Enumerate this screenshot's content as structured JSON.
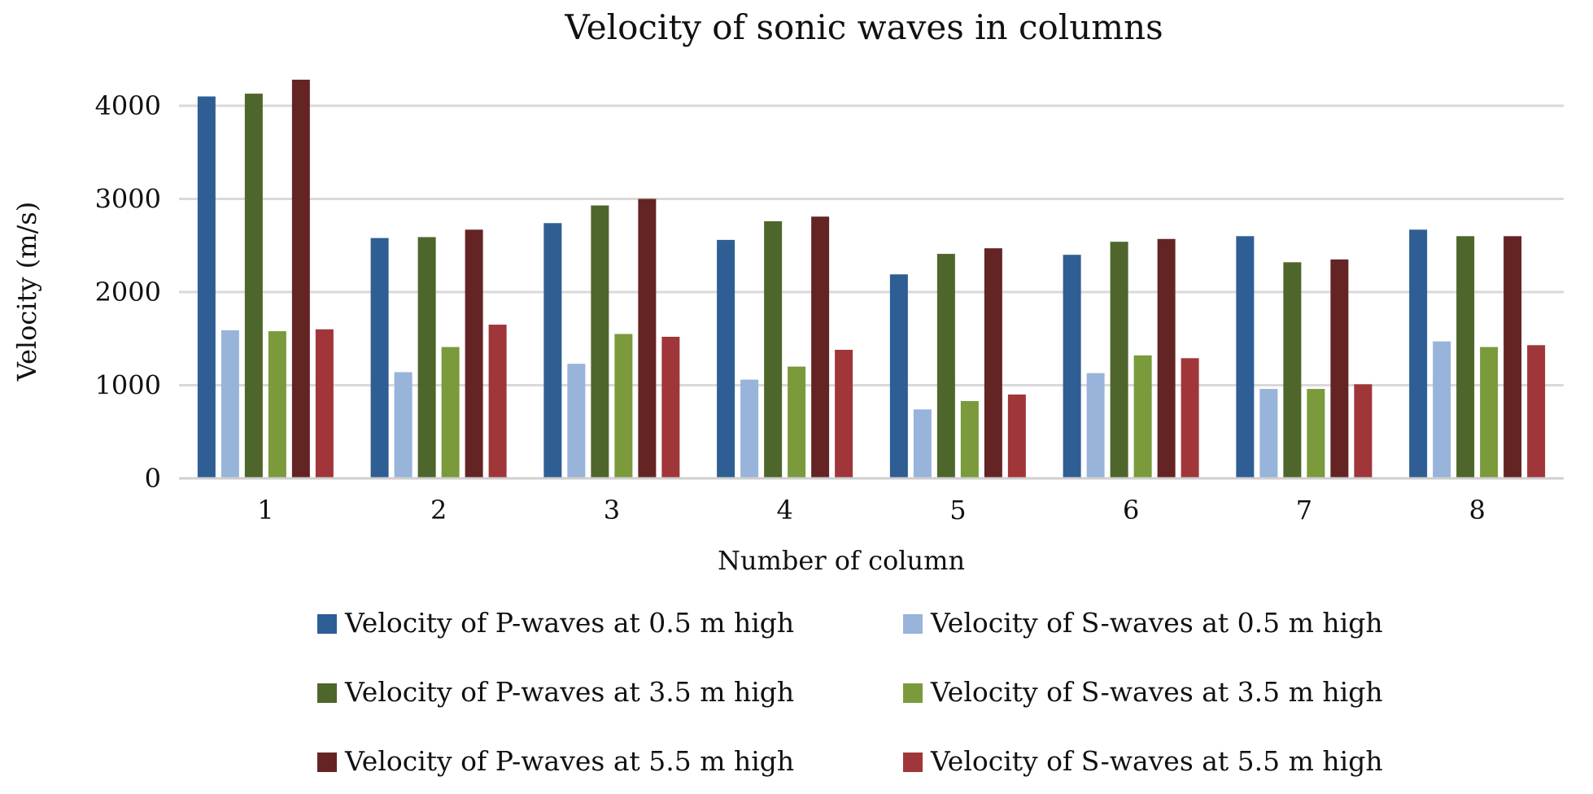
{
  "chart_data": {
    "type": "bar",
    "title": "Velocity of sonic waves in columns",
    "xlabel": "Number of column",
    "ylabel": "Velocity (m/s)",
    "categories": [
      "1",
      "2",
      "3",
      "4",
      "5",
      "6",
      "7",
      "8"
    ],
    "ylim": [
      0,
      4000
    ],
    "yticks": [
      "0",
      "1000",
      "2000",
      "3000",
      "4000"
    ],
    "grid": true,
    "legend_position": "bottom",
    "series": [
      {
        "name": "Velocity of P-waves at 0.5 m high",
        "color": "#2e5e94",
        "values": [
          4100,
          2580,
          2740,
          2560,
          2190,
          2400,
          2600,
          2670
        ]
      },
      {
        "name": "Velocity of S-waves at 0.5 m high",
        "color": "#98b4da",
        "values": [
          1590,
          1140,
          1230,
          1060,
          740,
          1130,
          960,
          1470
        ]
      },
      {
        "name": "Velocity of P-waves at 3.5 m high",
        "color": "#4e662b",
        "values": [
          4130,
          2590,
          2930,
          2760,
          2410,
          2540,
          2320,
          2600
        ]
      },
      {
        "name": "Velocity of S-waves at 3.5 m high",
        "color": "#7a9a3c",
        "values": [
          1580,
          1410,
          1550,
          1200,
          830,
          1320,
          960,
          1410
        ]
      },
      {
        "name": "Velocity of P-waves at 5.5 m high",
        "color": "#652424",
        "values": [
          4280,
          2670,
          3000,
          2810,
          2470,
          2570,
          2350,
          2600
        ]
      },
      {
        "name": "Velocity of S-waves at 5.5 m high",
        "color": "#a0363a",
        "values": [
          1600,
          1650,
          1520,
          1380,
          900,
          1290,
          1010,
          1430
        ]
      }
    ]
  }
}
